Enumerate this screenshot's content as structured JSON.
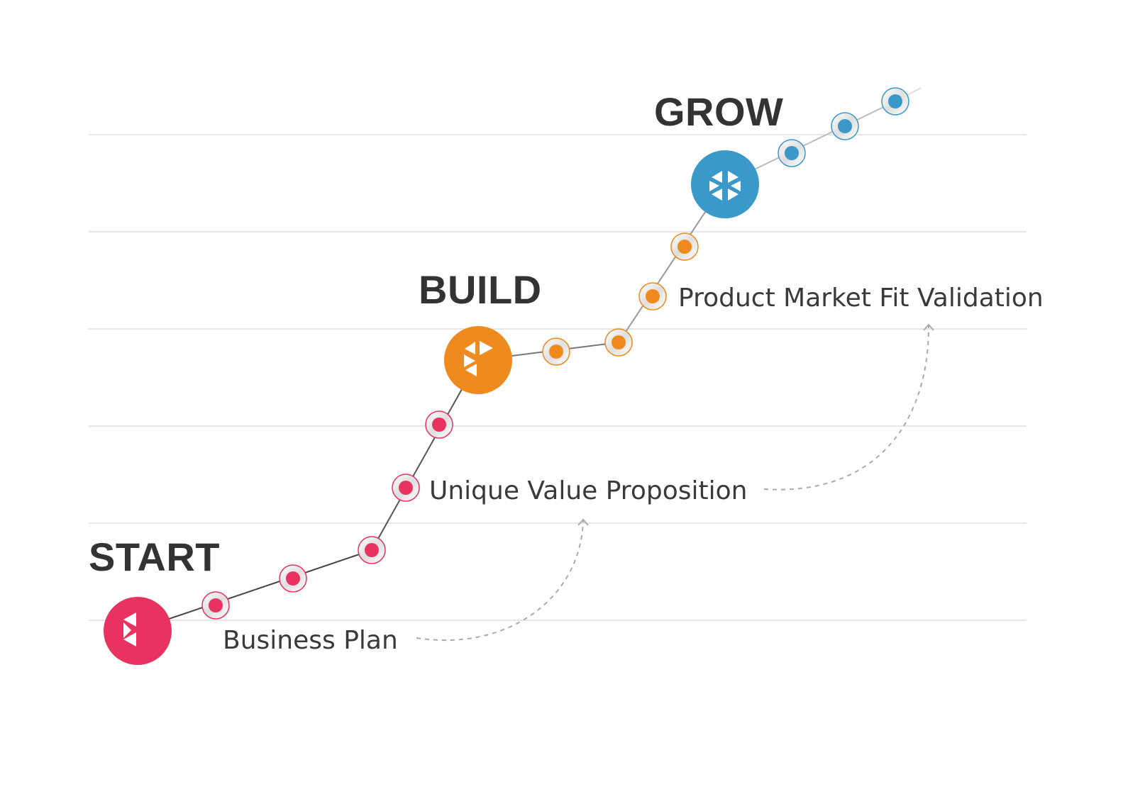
{
  "phases": {
    "start": {
      "title": "START",
      "color": "#E8325F"
    },
    "build": {
      "title": "BUILD",
      "color": "#EE8A1E"
    },
    "grow": {
      "title": "GROW",
      "color": "#3A99C8"
    }
  },
  "milestones": {
    "business_plan": "Business Plan",
    "unique_value_proposition": "Unique Value Proposition",
    "product_market_fit": "Product Market Fit Validation"
  },
  "colors": {
    "text": "#333333",
    "gridline": "#DDDDDD",
    "path": "#555555",
    "arrow": "#AAAAAA"
  },
  "icons": {
    "start_node": "logo-start-icon",
    "build_node": "logo-build-icon",
    "grow_node": "logo-grow-icon"
  }
}
